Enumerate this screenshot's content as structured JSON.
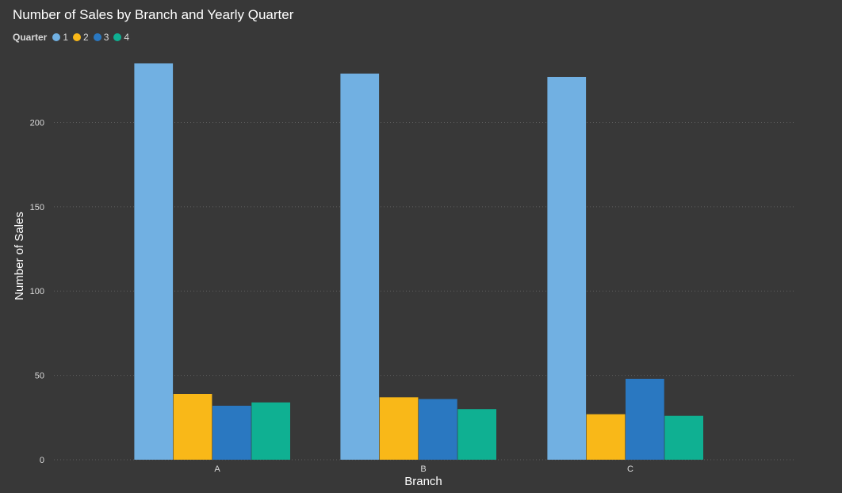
{
  "chart_data": {
    "type": "bar",
    "title": "Number of Sales by Branch and Yearly Quarter",
    "legend_title": "Quarter",
    "legend_position": "top-left",
    "xlabel": "Branch",
    "ylabel": "Number of Sales",
    "categories": [
      "A",
      "B",
      "C"
    ],
    "series": [
      {
        "name": "1",
        "color": "#71b0e2",
        "values": [
          235,
          229,
          227
        ]
      },
      {
        "name": "2",
        "color": "#f9b818",
        "values": [
          39,
          37,
          27
        ]
      },
      {
        "name": "3",
        "color": "#2a78c1",
        "values": [
          32,
          36,
          48
        ]
      },
      {
        "name": "4",
        "color": "#0fb092",
        "values": [
          34,
          30,
          26
        ]
      }
    ],
    "yticks": [
      0,
      50,
      100,
      150,
      200
    ],
    "ylim": [
      0,
      235
    ],
    "grid": true
  }
}
